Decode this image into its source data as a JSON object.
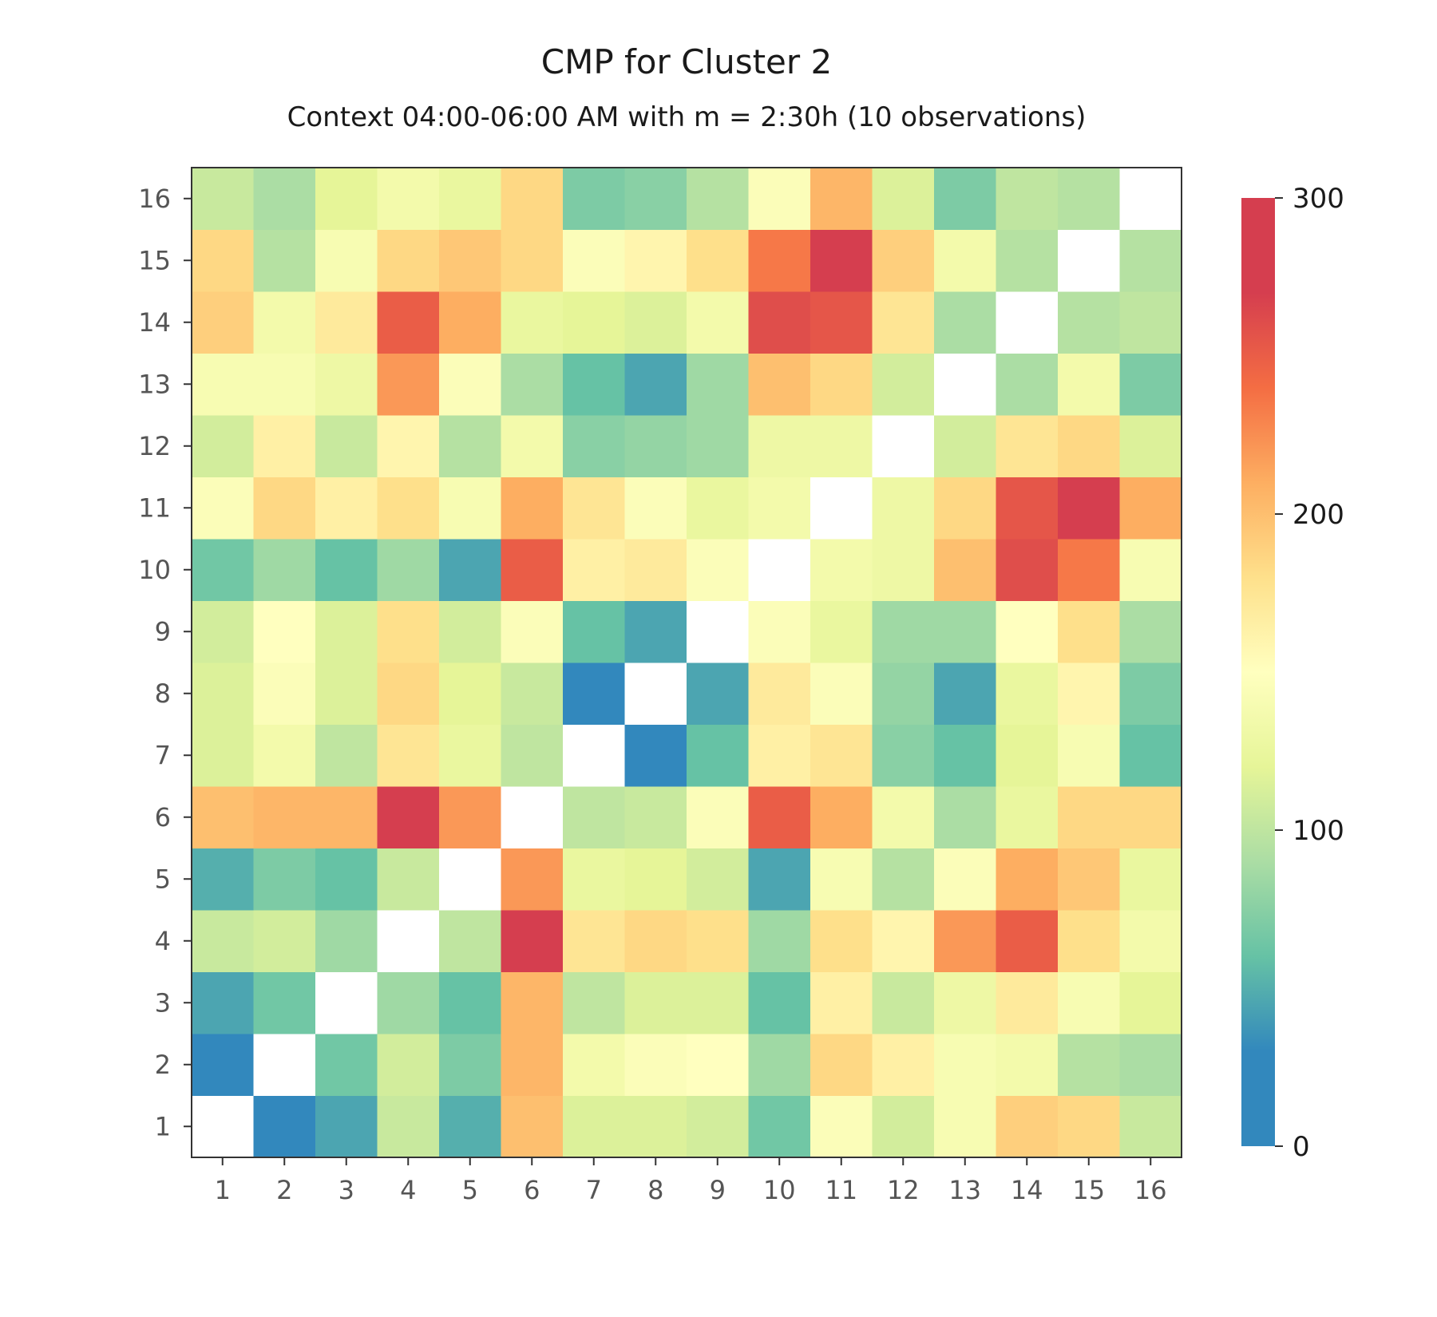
{
  "chart_data": {
    "type": "heatmap",
    "title": "CMP for Cluster 2",
    "subtitle": "Context 04:00-06:00 AM with m = 2:30h (10 observations)",
    "xlabel": "",
    "ylabel": "",
    "x_categories": [
      "1",
      "2",
      "3",
      "4",
      "5",
      "6",
      "7",
      "8",
      "9",
      "10",
      "11",
      "12",
      "13",
      "14",
      "15",
      "16"
    ],
    "y_categories": [
      "1",
      "2",
      "3",
      "4",
      "5",
      "6",
      "7",
      "8",
      "9",
      "10",
      "11",
      "12",
      "13",
      "14",
      "15",
      "16"
    ],
    "colorbar": {
      "min": 0,
      "max": 300,
      "ticks": [
        0,
        100,
        200,
        300
      ],
      "colormap": "Spectral_r"
    },
    "diagonal_empty": true,
    "values": [
      [
        null,
        30,
        45,
        105,
        50,
        200,
        115,
        115,
        110,
        65,
        145,
        110,
        140,
        190,
        185,
        105
      ],
      [
        30,
        null,
        65,
        110,
        70,
        205,
        135,
        145,
        150,
        85,
        185,
        165,
        140,
        135,
        95,
        90
      ],
      [
        45,
        65,
        null,
        85,
        60,
        205,
        100,
        115,
        115,
        60,
        165,
        105,
        130,
        170,
        140,
        120
      ],
      [
        105,
        110,
        85,
        null,
        100,
        280,
        175,
        185,
        180,
        85,
        180,
        160,
        220,
        250,
        180,
        135
      ],
      [
        50,
        70,
        60,
        105,
        null,
        220,
        125,
        120,
        110,
        45,
        140,
        95,
        145,
        210,
        195,
        125
      ],
      [
        200,
        205,
        205,
        280,
        220,
        null,
        100,
        105,
        145,
        250,
        210,
        135,
        90,
        125,
        185,
        185
      ],
      [
        115,
        135,
        100,
        175,
        125,
        100,
        null,
        30,
        60,
        165,
        175,
        75,
        60,
        120,
        140,
        60
      ],
      [
        115,
        145,
        115,
        185,
        120,
        105,
        30,
        null,
        45,
        170,
        145,
        80,
        45,
        125,
        160,
        70
      ],
      [
        110,
        150,
        115,
        180,
        110,
        145,
        60,
        45,
        null,
        145,
        125,
        85,
        85,
        150,
        180,
        90
      ],
      [
        65,
        85,
        60,
        85,
        45,
        250,
        165,
        170,
        145,
        null,
        135,
        130,
        200,
        260,
        235,
        140
      ],
      [
        145,
        185,
        165,
        180,
        140,
        210,
        175,
        145,
        125,
        135,
        null,
        130,
        185,
        255,
        275,
        210
      ],
      [
        110,
        165,
        105,
        160,
        95,
        135,
        75,
        80,
        85,
        130,
        130,
        null,
        110,
        175,
        185,
        115
      ],
      [
        140,
        140,
        130,
        220,
        145,
        90,
        60,
        45,
        85,
        200,
        185,
        110,
        null,
        90,
        135,
        70
      ],
      [
        190,
        135,
        170,
        250,
        210,
        125,
        120,
        115,
        135,
        260,
        255,
        175,
        90,
        null,
        95,
        100
      ],
      [
        185,
        95,
        140,
        185,
        195,
        185,
        145,
        160,
        180,
        235,
        275,
        190,
        135,
        95,
        null,
        95
      ],
      [
        105,
        90,
        120,
        135,
        125,
        185,
        70,
        75,
        95,
        145,
        205,
        115,
        70,
        100,
        95,
        null
      ]
    ]
  }
}
